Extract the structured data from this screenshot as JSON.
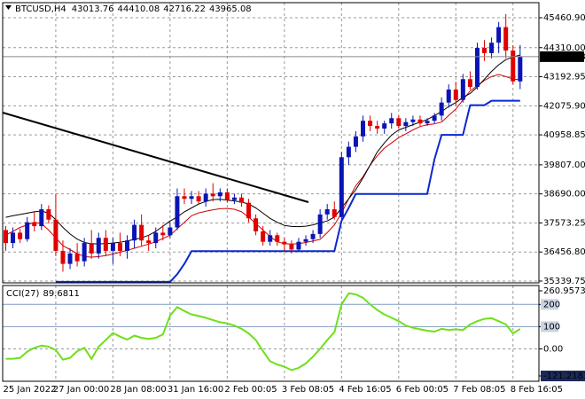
{
  "chart_data": {
    "type": "candlestick",
    "symbol": "BTCUSD,H4",
    "categories": [
      "25 Jan 2022",
      null,
      null,
      null,
      null,
      null,
      null,
      "27 Jan 00:00",
      null,
      null,
      null,
      null,
      null,
      null,
      null,
      "28 Jan 08:00",
      null,
      null,
      null,
      null,
      null,
      null,
      null,
      "31 Jan 16:00",
      null,
      null,
      null,
      null,
      null,
      null,
      null,
      "2 Feb 00:05",
      null,
      null,
      null,
      null,
      null,
      null,
      null,
      "3 Feb 08:05",
      null,
      null,
      null,
      null,
      null,
      null,
      null,
      "4 Feb 16:05",
      null,
      null,
      null,
      null,
      null,
      null,
      null,
      "6 Feb 00:05",
      null,
      null,
      null,
      null,
      null,
      null,
      null,
      "7 Feb 08:05",
      null,
      null,
      null,
      null,
      null,
      null,
      null,
      "8 Feb 16:05",
      null
    ],
    "open": [
      37300,
      36800,
      37200,
      36950,
      37600,
      37450,
      38100,
      37700,
      36500,
      36000,
      36400,
      36100,
      36800,
      36400,
      37000,
      36500,
      36800,
      36500,
      36900,
      37500,
      36900,
      36800,
      37200,
      37100,
      37400,
      38600,
      38500,
      38600,
      38400,
      38700,
      38600,
      38750,
      38450,
      38550,
      38350,
      37750,
      37250,
      36850,
      37100,
      36850,
      36750,
      36550,
      36850,
      36950,
      37150,
      37900,
      38100,
      37800,
      40100,
      40500,
      40900,
      41500,
      41300,
      41200,
      41400,
      41600,
      41300,
      41450,
      41550,
      41400,
      41500,
      41700,
      42200,
      42700,
      42300,
      43100,
      42800,
      44300,
      44100,
      44500,
      45100,
      44200,
      43013.76
    ],
    "high": [
      37450,
      37400,
      37350,
      37800,
      38000,
      38300,
      38250,
      38700,
      36900,
      36600,
      36800,
      37000,
      37300,
      37200,
      37300,
      37000,
      37200,
      37100,
      37700,
      37900,
      37100,
      37400,
      37500,
      37600,
      38900,
      38900,
      38800,
      38800,
      38900,
      39100,
      38900,
      38900,
      38700,
      38700,
      38500,
      37900,
      37450,
      37300,
      37200,
      37000,
      36900,
      37000,
      37100,
      37300,
      38100,
      38300,
      38400,
      40300,
      40700,
      41100,
      41700,
      41700,
      41500,
      41500,
      41800,
      41700,
      41600,
      41700,
      41700,
      41600,
      41800,
      42400,
      42900,
      43000,
      43300,
      43400,
      44500,
      44600,
      44700,
      45300,
      45600,
      44400,
      44410.08
    ],
    "low": [
      36500,
      36600,
      36800,
      36850,
      37250,
      37300,
      37550,
      36300,
      35700,
      35800,
      35900,
      35900,
      36200,
      36200,
      36300,
      36000,
      36300,
      36200,
      36600,
      36700,
      36500,
      36600,
      36900,
      37000,
      37300,
      38300,
      38300,
      38300,
      38200,
      38400,
      38400,
      38350,
      38300,
      38200,
      37600,
      37100,
      36700,
      36700,
      36700,
      36500,
      36400,
      36450,
      36700,
      36800,
      37000,
      37700,
      37700,
      37700,
      39800,
      40300,
      40700,
      41100,
      41000,
      41000,
      41200,
      41200,
      41100,
      41300,
      41300,
      41300,
      41400,
      41500,
      42000,
      42100,
      42200,
      42700,
      42700,
      43800,
      43900,
      44100,
      43900,
      42900,
      42716.22
    ],
    "close": [
      36800,
      37200,
      36950,
      37600,
      37450,
      38100,
      37700,
      36500,
      36000,
      36400,
      36100,
      36800,
      36400,
      37000,
      36500,
      36800,
      36500,
      36900,
      37500,
      36900,
      36800,
      37200,
      37100,
      37400,
      38600,
      38500,
      38600,
      38400,
      38700,
      38600,
      38750,
      38450,
      38550,
      38350,
      37750,
      37250,
      36850,
      37100,
      36850,
      36750,
      36550,
      36850,
      36950,
      37150,
      37900,
      38100,
      37800,
      40100,
      40500,
      40900,
      41500,
      41300,
      41200,
      41400,
      41600,
      41300,
      41450,
      41550,
      41400,
      41500,
      41700,
      42200,
      42700,
      42300,
      43100,
      42800,
      44300,
      44100,
      44500,
      45100,
      44200,
      43014,
      43965.08
    ],
    "up_color": "#0a14b4",
    "down_color": "#e00000",
    "lines": [
      {
        "color": "#d00000",
        "width": 1,
        "values": [
          37110,
          37250,
          37400,
          37500,
          37600,
          37550,
          37300,
          37000,
          36700,
          36550,
          36400,
          36280,
          36260,
          36280,
          36320,
          36380,
          36450,
          36520,
          36600,
          36680,
          36760,
          36850,
          36980,
          37100,
          37350,
          37600,
          37850,
          37960,
          38020,
          38080,
          38120,
          38130,
          38100,
          38000,
          37800,
          37550,
          37300,
          37050,
          36850,
          36780,
          36760,
          36780,
          36820,
          36880,
          36940,
          37200,
          37500,
          37950,
          38500,
          39000,
          39350,
          39800,
          40150,
          40450,
          40650,
          40850,
          41000,
          41150,
          41280,
          41350,
          41380,
          41450,
          41700,
          41950,
          42300,
          42650,
          42850,
          43050,
          43200,
          43280,
          43200,
          43100,
          43080
        ]
      },
      {
        "color": "#000000",
        "width": 1,
        "values": [
          37790,
          37850,
          37900,
          37950,
          38000,
          38030,
          37950,
          37700,
          37400,
          37150,
          36950,
          36820,
          36770,
          36770,
          36780,
          36800,
          36830,
          36880,
          36940,
          37000,
          37100,
          37250,
          37450,
          37650,
          37800,
          38000,
          38150,
          38300,
          38400,
          38470,
          38480,
          38450,
          38420,
          38380,
          38300,
          38150,
          37950,
          37750,
          37600,
          37480,
          37440,
          37430,
          37450,
          37500,
          37580,
          37650,
          37800,
          38150,
          38500,
          38850,
          39300,
          39800,
          40300,
          40650,
          40950,
          41150,
          41250,
          41350,
          41450,
          41550,
          41700,
          41850,
          42050,
          42200,
          42400,
          42550,
          42800,
          43100,
          43400,
          43650,
          43850,
          43950,
          44030
        ]
      },
      {
        "color": "#0a28d0",
        "width": 2,
        "values": [
          null,
          null,
          null,
          null,
          null,
          null,
          null,
          35310,
          35310,
          35310,
          35310,
          35310,
          35310,
          35310,
          35310,
          35310,
          35310,
          35310,
          35310,
          35310,
          35310,
          35310,
          35310,
          35310,
          35600,
          36000,
          36490,
          36490,
          36490,
          36490,
          36490,
          36490,
          36490,
          36490,
          36490,
          36490,
          36490,
          36490,
          36490,
          36490,
          36490,
          36490,
          36490,
          36490,
          36490,
          36490,
          36490,
          37650,
          38150,
          38690,
          38690,
          38690,
          38690,
          38690,
          38690,
          38690,
          38690,
          38690,
          38690,
          38690,
          40010,
          40960,
          40960,
          40960,
          40960,
          42100,
          42100,
          42100,
          42270,
          42270,
          42270,
          42270,
          42270
        ]
      }
    ],
    "ylim": [
      35305,
      46040
    ],
    "yticks": [
      {
        "value": 45460.9,
        "label": "45460.90"
      },
      {
        "value": 44310,
        "label": "44310.00"
      },
      43192.95,
      {
        "value": 42075.9,
        "label": "42075.90"
      },
      40958.85,
      {
        "value": 39807,
        "label": "39807.00"
      },
      {
        "value": 38690,
        "label": "38690.00"
      },
      37573.25,
      {
        "value": 36456.8,
        "label": "36456.80"
      },
      35339.75
    ],
    "grid": true,
    "indicator": {
      "type": "line",
      "name": "CCI(27)",
      "color": "#6ee01a",
      "values": [
        -44,
        -44,
        -40,
        -12,
        5,
        15,
        10,
        -5,
        -48,
        -40,
        -10,
        5,
        -45,
        10,
        40,
        72,
        55,
        42,
        60,
        50,
        45,
        50,
        65,
        150,
        188,
        170,
        155,
        148,
        140,
        130,
        120,
        115,
        105,
        90,
        70,
        40,
        -10,
        -55,
        -70,
        -80,
        -95,
        -85,
        -65,
        -35,
        0,
        40,
        75,
        200,
        250,
        245,
        230,
        200,
        175,
        155,
        140,
        125,
        105,
        95,
        88,
        82,
        78,
        90,
        85,
        88,
        85,
        110,
        125,
        135,
        138,
        125,
        110,
        70,
        89.6811
      ],
      "ylim": [
        -121.2183,
        260.9573
      ],
      "yticks": [
        260.9573,
        200,
        100,
        {
          "value": 0,
          "label": "0.00"
        },
        -121.2183
      ],
      "levels": [
        200,
        100
      ]
    }
  }
}
